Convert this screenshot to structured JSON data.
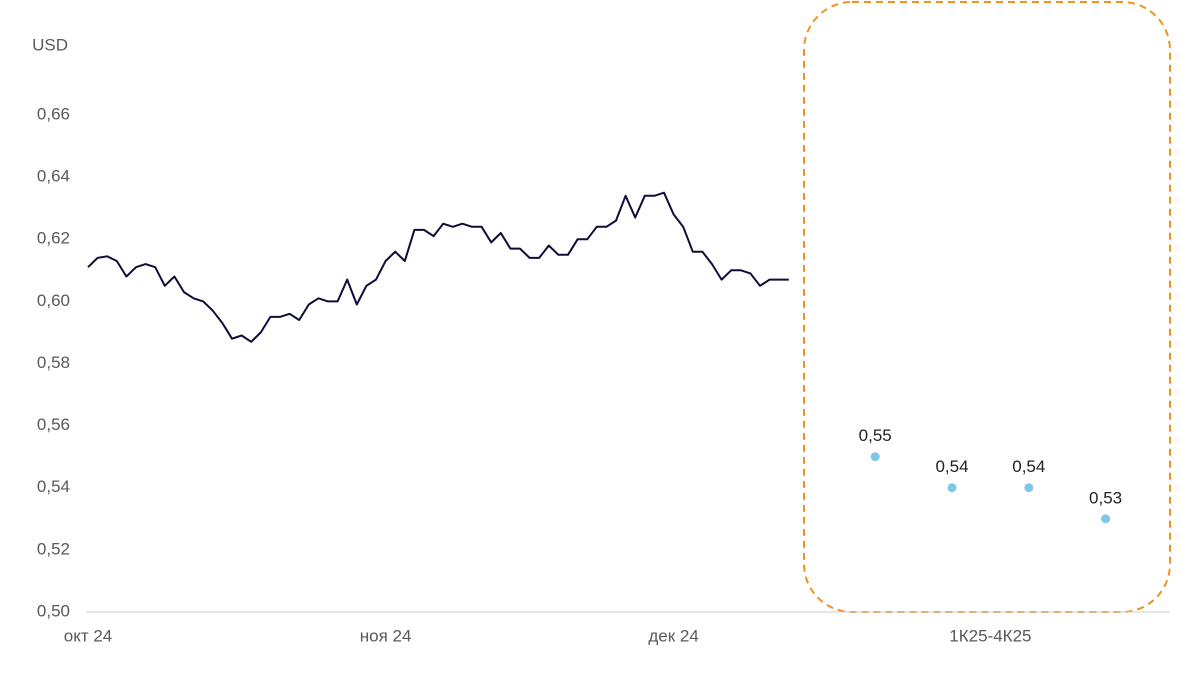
{
  "chart_data": {
    "type": "line",
    "y_label": "USD",
    "ylim": [
      0.5,
      0.66
    ],
    "yticks": [
      {
        "value": 0.5,
        "label": "0,50"
      },
      {
        "value": 0.52,
        "label": "0,52"
      },
      {
        "value": 0.54,
        "label": "0,54"
      },
      {
        "value": 0.56,
        "label": "0,56"
      },
      {
        "value": 0.58,
        "label": "0,58"
      },
      {
        "value": 0.6,
        "label": "0,60"
      },
      {
        "value": 0.62,
        "label": "0,62"
      },
      {
        "value": 0.64,
        "label": "0,64"
      },
      {
        "value": 0.66,
        "label": "0,66"
      }
    ],
    "grid": false,
    "categories": [
      "окт 24",
      null,
      null,
      null,
      null,
      null,
      null,
      null,
      null,
      null,
      null,
      null,
      null,
      null,
      null,
      null,
      null,
      null,
      null,
      null,
      null,
      null,
      null,
      null,
      null,
      null,
      null,
      null,
      null,
      null,
      null,
      "ноя 24",
      null,
      null,
      null,
      null,
      null,
      null,
      null,
      null,
      null,
      null,
      null,
      null,
      null,
      null,
      null,
      null,
      null,
      null,
      null,
      null,
      null,
      null,
      null,
      null,
      null,
      null,
      null,
      null,
      null,
      "дек 24",
      null,
      null,
      null,
      null,
      null,
      null,
      null,
      null,
      null,
      null,
      null,
      null,
      null,
      null,
      null,
      null,
      null,
      null,
      null,
      null,
      null,
      null,
      null,
      null,
      null,
      null,
      null,
      null,
      null,
      null,
      null,
      null,
      "1К25-4К25",
      null,
      null,
      null,
      null,
      null,
      null,
      null,
      null,
      null,
      null,
      null,
      null,
      null,
      null,
      null,
      null,
      null,
      null
    ],
    "series": [
      {
        "color": "#0d0d3a",
        "mark": "line",
        "values": [
          0.611,
          0.614,
          0.6145,
          0.613,
          0.608,
          0.611,
          0.612,
          0.611,
          0.605,
          0.608,
          0.603,
          0.601,
          0.6,
          0.597,
          0.593,
          0.588,
          0.589,
          0.587,
          0.59,
          0.595,
          0.595,
          0.596,
          0.594,
          0.599,
          0.601,
          0.6,
          0.6,
          0.607,
          0.599,
          0.605,
          0.607,
          0.613,
          0.616,
          0.613,
          0.623,
          0.623,
          0.621,
          0.625,
          0.624,
          0.625,
          0.624,
          0.624,
          0.619,
          0.622,
          0.617,
          0.617,
          0.614,
          0.614,
          0.618,
          0.615,
          0.615,
          0.62,
          0.62,
          0.624,
          0.624,
          0.626,
          0.634,
          0.627,
          0.634,
          0.634,
          0.635,
          0.628,
          0.624,
          0.616,
          0.616,
          0.612,
          0.607,
          0.61,
          0.61,
          0.609,
          0.605,
          0.607,
          0.607,
          0.607,
          null,
          null,
          null,
          null,
          null,
          null,
          null,
          null,
          null,
          null,
          null,
          null,
          null,
          null,
          null,
          null,
          null,
          null,
          null,
          null,
          null,
          null,
          null,
          null,
          null,
          null,
          null,
          null,
          null,
          null,
          null,
          null,
          null,
          null,
          null,
          null,
          null,
          null,
          null
        ]
      },
      {
        "color": "#7ec8e3",
        "mark": "point",
        "values": [
          null,
          null,
          null,
          null,
          null,
          null,
          null,
          null,
          null,
          null,
          null,
          null,
          null,
          null,
          null,
          null,
          null,
          null,
          null,
          null,
          null,
          null,
          null,
          null,
          null,
          null,
          null,
          null,
          null,
          null,
          null,
          null,
          null,
          null,
          null,
          null,
          null,
          null,
          null,
          null,
          null,
          null,
          null,
          null,
          null,
          null,
          null,
          null,
          null,
          null,
          null,
          null,
          null,
          null,
          null,
          null,
          null,
          null,
          null,
          null,
          null,
          null,
          null,
          null,
          null,
          null,
          null,
          null,
          null,
          null,
          null,
          null,
          null,
          null,
          null,
          null,
          null,
          null,
          null,
          null,
          null,
          null,
          0.55,
          null,
          null,
          null,
          null,
          null,
          null,
          null,
          0.54,
          null,
          null,
          null,
          null,
          null,
          null,
          null,
          0.54,
          null,
          null,
          null,
          null,
          null,
          null,
          null,
          0.53,
          null,
          null,
          null,
          null,
          null,
          null
        ],
        "value_labels": [
          null,
          null,
          null,
          null,
          null,
          null,
          null,
          null,
          null,
          null,
          null,
          null,
          null,
          null,
          null,
          null,
          null,
          null,
          null,
          null,
          null,
          null,
          null,
          null,
          null,
          null,
          null,
          null,
          null,
          null,
          null,
          null,
          null,
          null,
          null,
          null,
          null,
          null,
          null,
          null,
          null,
          null,
          null,
          null,
          null,
          null,
          null,
          null,
          null,
          null,
          null,
          null,
          null,
          null,
          null,
          null,
          null,
          null,
          null,
          null,
          null,
          null,
          null,
          null,
          null,
          null,
          null,
          null,
          null,
          null,
          null,
          null,
          null,
          null,
          null,
          null,
          null,
          null,
          null,
          null,
          null,
          null,
          "0,55",
          null,
          null,
          null,
          null,
          null,
          null,
          null,
          "0,54",
          null,
          null,
          null,
          null,
          null,
          null,
          null,
          "0,54",
          null,
          null,
          null,
          null,
          null,
          null,
          null,
          "0,53",
          null,
          null,
          null,
          null,
          null,
          null
        ]
      }
    ]
  }
}
